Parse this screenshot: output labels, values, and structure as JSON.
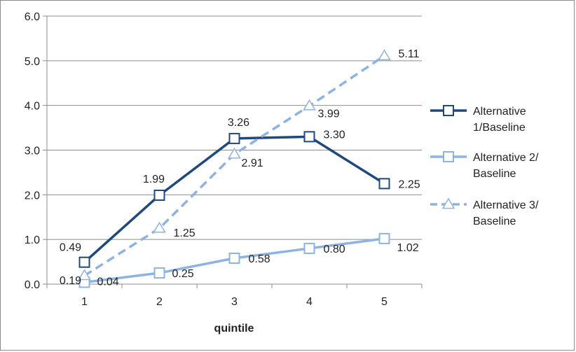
{
  "chart_data": {
    "type": "line",
    "title": "",
    "xlabel": "quintile",
    "ylabel": "",
    "categories": [
      "1",
      "2",
      "3",
      "4",
      "5"
    ],
    "ylim": [
      0,
      6
    ],
    "yticks": [
      "0.0",
      "1.0",
      "2.0",
      "3.0",
      "4.0",
      "5.0",
      "6.0"
    ],
    "grid": true,
    "legend_position": "right",
    "series": [
      {
        "name": "Alternative 1/Baseline",
        "legend_lines": [
          "Alternative",
          "1/Baseline"
        ],
        "values": [
          0.49,
          1.99,
          3.26,
          3.3,
          2.25
        ],
        "labels": [
          "0.49",
          "1.99",
          "3.26",
          "3.30",
          "2.25"
        ],
        "color": "#1f497d",
        "marker": "square",
        "dashed": false
      },
      {
        "name": "Alternative 2/ Baseline",
        "legend_lines": [
          "Alternative 2/",
          "Baseline"
        ],
        "values": [
          0.04,
          0.25,
          0.58,
          0.8,
          1.02
        ],
        "labels": [
          "0.04",
          "0.25",
          "0.58",
          "0.80",
          "1.02"
        ],
        "color": "#8db3e2",
        "marker": "square",
        "dashed": false
      },
      {
        "name": "Alternative 3/ Baseline",
        "legend_lines": [
          "Alternative 3/",
          "Baseline"
        ],
        "values": [
          0.19,
          1.25,
          2.91,
          3.99,
          5.11
        ],
        "labels": [
          "0.19",
          "1.25",
          "2.91",
          "3.99",
          "5.11"
        ],
        "color": "#8db3e2",
        "marker": "triangle",
        "dashed": true
      }
    ]
  }
}
